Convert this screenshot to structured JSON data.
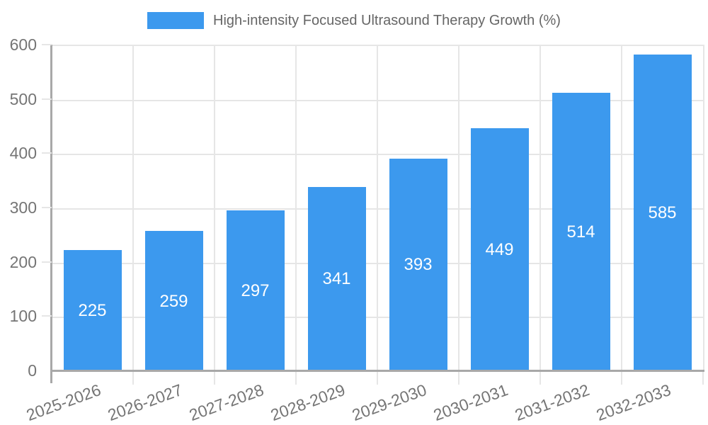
{
  "chart_data": {
    "type": "bar",
    "title": "High-intensity Focused Ultrasound Therapy Growth (%)",
    "categories": [
      "2025-2026",
      "2026-2027",
      "2027-2028",
      "2028-2029",
      "2029-2030",
      "2030-2031",
      "2031-2032",
      "2032-2033"
    ],
    "values": [
      225,
      259,
      297,
      341,
      393,
      449,
      514,
      585
    ],
    "xlabel": "",
    "ylabel": "",
    "ylim": [
      0,
      600
    ],
    "yticks": [
      0,
      100,
      200,
      300,
      400,
      500,
      600
    ],
    "grid": true,
    "legend_position": "top-center",
    "value_labels": "inside-center",
    "bar_color": "#3c99ee",
    "value_label_color": "#ffffff",
    "axis_line_color": "#a8a8a8",
    "grid_line_color": "#e6e6e6",
    "tick_label_color": "#757575",
    "legend_text_color": "#666666",
    "background_color": "#ffffff"
  }
}
